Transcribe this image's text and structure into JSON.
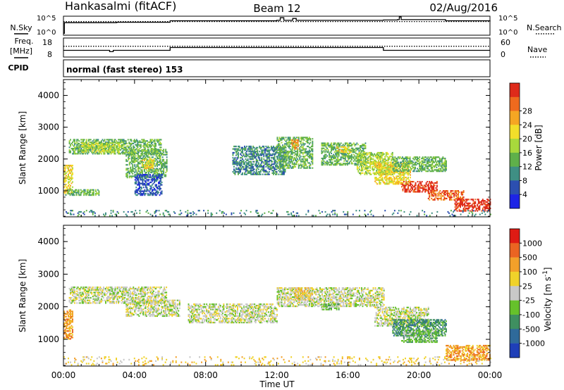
{
  "header": {
    "site": "Hankasalmi (fitACF)",
    "beam": "Beam 12",
    "date": "02/Aug/2016"
  },
  "params": {
    "left_labels": {
      "nsky": "N.Sky",
      "freq": "Freq.",
      "freq_unit": "[MHz]",
      "cpid": "CPID"
    },
    "right_labels": {
      "nsearch": "N.Search",
      "nave": "Nave"
    },
    "noise_ticks_left": [
      "10^5",
      "10^0"
    ],
    "noise_ticks_right": [
      "10^5",
      "10^0"
    ],
    "freq_ticks": [
      "18",
      "8"
    ],
    "nave_ticks": [
      "60",
      "0"
    ],
    "cpid_text": "normal (fast stereo) 153",
    "noise_sky": [
      {
        "t": 0.0,
        "v": 0.5
      },
      {
        "t": 0.05,
        "v": 3.3
      },
      {
        "t": 3.0,
        "v": 3.4
      },
      {
        "t": 5.99,
        "v": 3.4
      },
      {
        "t": 6.0,
        "v": 3.8
      },
      {
        "t": 12.0,
        "v": 3.9
      },
      {
        "t": 12.2,
        "v": 4.6
      },
      {
        "t": 12.4,
        "v": 3.9
      },
      {
        "t": 12.9,
        "v": 4.4
      },
      {
        "t": 13.1,
        "v": 3.9
      },
      {
        "t": 17.99,
        "v": 3.9
      },
      {
        "t": 18.0,
        "v": 4.0
      },
      {
        "t": 18.8,
        "v": 4.1
      },
      {
        "t": 18.9,
        "v": 4.8
      },
      {
        "t": 19.0,
        "v": 4.1
      },
      {
        "t": 21.5,
        "v": 3.8
      },
      {
        "t": 24.0,
        "v": 3.6
      }
    ],
    "noise_search": [
      {
        "t": 0.0,
        "v": 3.6
      },
      {
        "t": 24.0,
        "v": 3.6
      }
    ],
    "freq": [
      {
        "t": 0.0,
        "v": 11.5
      },
      {
        "t": 2.5,
        "v": 11.5
      },
      {
        "t": 2.6,
        "v": 10.8
      },
      {
        "t": 2.8,
        "v": 11.5
      },
      {
        "t": 5.99,
        "v": 11.5
      },
      {
        "t": 6.0,
        "v": 13.0
      },
      {
        "t": 17.99,
        "v": 13.0
      },
      {
        "t": 18.0,
        "v": 11.5
      },
      {
        "t": 24.0,
        "v": 11.5
      }
    ],
    "nave": [
      {
        "t": 0.0,
        "v": 34
      },
      {
        "t": 24.0,
        "v": 34
      }
    ]
  },
  "chart_data": [
    {
      "type": "heatmap",
      "name": "power",
      "ylabel": "Slant Range [km]",
      "ylim": [
        180,
        4500
      ],
      "y_ticks": [
        1000,
        2000,
        3000,
        4000
      ],
      "xlim": [
        0,
        24
      ],
      "colorbar": {
        "label": "Power [dB]",
        "ticks": [
          "4",
          "8",
          "12",
          "16",
          "20",
          "24",
          "28"
        ],
        "colors": [
          "#1d24e6",
          "#2c4fb0",
          "#3f8f84",
          "#5fb04a",
          "#a8d83c",
          "#f2de2a",
          "#f5a623",
          "#ee6a1e",
          "#de2a1a"
        ]
      },
      "regions": [
        {
          "t0": 0.0,
          "t1": 0.5,
          "r0": 900,
          "r1": 1800,
          "level": 5
        },
        {
          "t0": 0.1,
          "t1": 2.0,
          "r0": 850,
          "r1": 1050,
          "level": 3
        },
        {
          "t0": 0.3,
          "t1": 5.5,
          "r0": 2150,
          "r1": 2600,
          "level": 3
        },
        {
          "t0": 1.0,
          "t1": 3.2,
          "r0": 2200,
          "r1": 2500,
          "level": 4
        },
        {
          "t0": 3.5,
          "t1": 5.8,
          "r0": 1400,
          "r1": 2300,
          "level": 3
        },
        {
          "t0": 4.4,
          "t1": 5.1,
          "r0": 1700,
          "r1": 2000,
          "level": 5
        },
        {
          "t0": 4.0,
          "t1": 5.5,
          "r0": 850,
          "r1": 1500,
          "level": 1
        },
        {
          "t0": 9.5,
          "t1": 12.5,
          "r0": 1500,
          "r1": 2400,
          "level": 2
        },
        {
          "t0": 12.0,
          "t1": 14.0,
          "r0": 1700,
          "r1": 2700,
          "level": 3
        },
        {
          "t0": 12.8,
          "t1": 13.2,
          "r0": 2300,
          "r1": 2600,
          "level": 6
        },
        {
          "t0": 14.5,
          "t1": 17.0,
          "r0": 1800,
          "r1": 2500,
          "level": 3
        },
        {
          "t0": 15.3,
          "t1": 16.2,
          "r0": 2200,
          "r1": 2400,
          "level": 5
        },
        {
          "t0": 16.5,
          "t1": 18.5,
          "r0": 1500,
          "r1": 2200,
          "level": 4
        },
        {
          "t0": 17.5,
          "t1": 19.5,
          "r0": 1200,
          "r1": 1900,
          "level": 5
        },
        {
          "t0": 18.5,
          "t1": 21.5,
          "r0": 1600,
          "r1": 2050,
          "level": 3
        },
        {
          "t0": 19.0,
          "t1": 21.0,
          "r0": 950,
          "r1": 1300,
          "level": 8
        },
        {
          "t0": 20.5,
          "t1": 22.5,
          "r0": 700,
          "r1": 1000,
          "level": 7
        },
        {
          "t0": 22.0,
          "t1": 24.0,
          "r0": 350,
          "r1": 750,
          "level": 8
        },
        {
          "t0": 0.0,
          "t1": 24.0,
          "r0": 200,
          "r1": 400,
          "level": 2
        }
      ]
    },
    {
      "type": "heatmap",
      "name": "velocity",
      "ylabel": "Slant Range [km]",
      "ylim": [
        180,
        4500
      ],
      "y_ticks": [
        1000,
        2000,
        3000,
        4000
      ],
      "xlim": [
        0,
        24
      ],
      "x_ticks": [
        "00:00",
        "04:00",
        "08:00",
        "12:00",
        "16:00",
        "20:00",
        "00:00"
      ],
      "xlabel": "Time UT",
      "colorbar": {
        "label": "Velocity [m s^-1]",
        "ticks": [
          "1000",
          "500",
          "100",
          "25",
          "-25",
          "-100",
          "-500",
          "-1000"
        ],
        "colors": [
          "#1f3fb8",
          "#2f6a9a",
          "#3f8f60",
          "#66c12b",
          "#c8c8c8",
          "#f0d22a",
          "#f2a02a",
          "#ea6422",
          "#de1b14"
        ]
      },
      "regions": [
        {
          "t0": 0.0,
          "t1": 0.5,
          "r0": 1000,
          "r1": 1900,
          "level": 6
        },
        {
          "t0": 0.3,
          "t1": 5.8,
          "r0": 2100,
          "r1": 2600,
          "level": 4
        },
        {
          "t0": 3.5,
          "t1": 6.5,
          "r0": 1700,
          "r1": 2200,
          "level": 4
        },
        {
          "t0": 7.0,
          "t1": 12.0,
          "r0": 1500,
          "r1": 2100,
          "level": 4
        },
        {
          "t0": 12.0,
          "t1": 18.0,
          "r0": 2000,
          "r1": 2600,
          "level": 4
        },
        {
          "t0": 13.0,
          "t1": 14.0,
          "r0": 2200,
          "r1": 2600,
          "level": 5
        },
        {
          "t0": 14.5,
          "t1": 15.5,
          "r0": 1900,
          "r1": 2100,
          "level": 3
        },
        {
          "t0": 17.5,
          "t1": 20.5,
          "r0": 1400,
          "r1": 2000,
          "level": 4
        },
        {
          "t0": 18.5,
          "t1": 21.5,
          "r0": 1100,
          "r1": 1600,
          "level": 2
        },
        {
          "t0": 19.0,
          "t1": 21.0,
          "r0": 900,
          "r1": 1300,
          "level": 3
        },
        {
          "t0": 21.5,
          "t1": 24.0,
          "r0": 350,
          "r1": 800,
          "level": 6
        },
        {
          "t0": 0.0,
          "t1": 24.0,
          "r0": 200,
          "r1": 450,
          "level": 5
        }
      ]
    }
  ]
}
